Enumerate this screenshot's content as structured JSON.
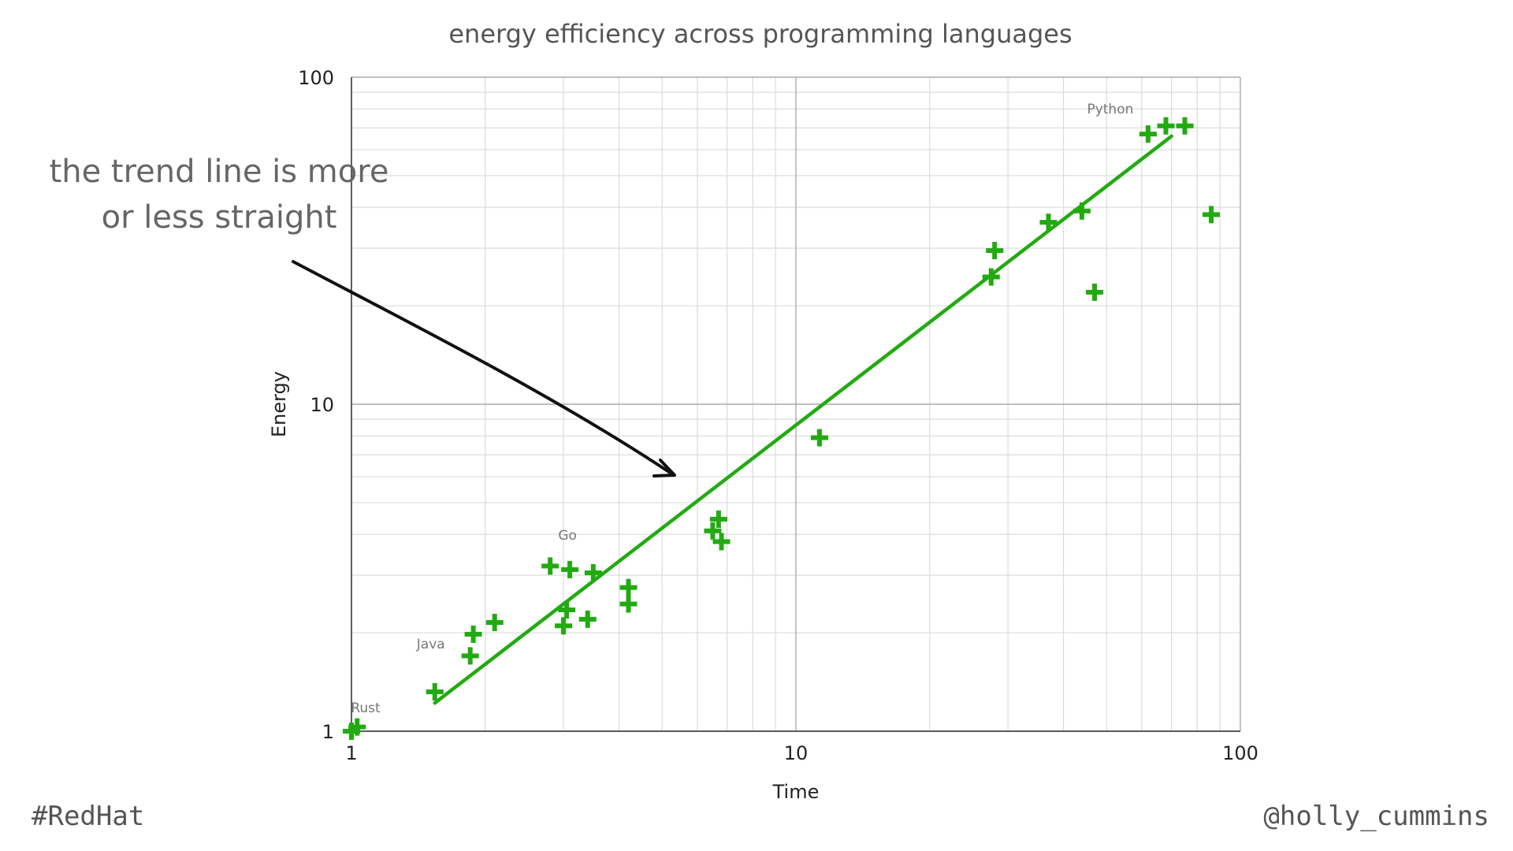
{
  "chart_data": {
    "type": "scatter",
    "title": "energy efficiency across programming languages",
    "xlabel": "Time",
    "ylabel": "Energy",
    "x_scale": "log",
    "y_scale": "log",
    "xlim": [
      1,
      100
    ],
    "ylim": [
      1,
      100
    ],
    "x_ticks": [
      {
        "value": 1,
        "label": "1"
      },
      {
        "value": 10,
        "label": "10"
      },
      {
        "value": 100,
        "label": "100"
      }
    ],
    "y_ticks": [
      {
        "value": 1,
        "label": "1"
      },
      {
        "value": 10,
        "label": "10"
      },
      {
        "value": 100,
        "label": "100"
      }
    ],
    "grid": true,
    "marker": "plus",
    "marker_color": "#22aa11",
    "points": [
      {
        "x": 1.0,
        "y": 1.0
      },
      {
        "x": 1.03,
        "y": 1.03
      },
      {
        "x": 1.54,
        "y": 1.32
      },
      {
        "x": 1.85,
        "y": 1.7
      },
      {
        "x": 1.88,
        "y": 1.98
      },
      {
        "x": 2.1,
        "y": 2.15
      },
      {
        "x": 2.8,
        "y": 3.2
      },
      {
        "x": 3.1,
        "y": 3.12
      },
      {
        "x": 3.5,
        "y": 3.05
      },
      {
        "x": 3.0,
        "y": 2.1
      },
      {
        "x": 3.05,
        "y": 2.35
      },
      {
        "x": 3.4,
        "y": 2.2
      },
      {
        "x": 4.2,
        "y": 2.75
      },
      {
        "x": 4.2,
        "y": 2.45
      },
      {
        "x": 6.5,
        "y": 4.1
      },
      {
        "x": 6.7,
        "y": 4.45
      },
      {
        "x": 6.8,
        "y": 3.8
      },
      {
        "x": 11.3,
        "y": 7.9
      },
      {
        "x": 27.5,
        "y": 24.5
      },
      {
        "x": 28.0,
        "y": 29.5
      },
      {
        "x": 37.0,
        "y": 36.0
      },
      {
        "x": 44.0,
        "y": 39.0
      },
      {
        "x": 47.0,
        "y": 22.0
      },
      {
        "x": 62.0,
        "y": 67.0
      },
      {
        "x": 68.0,
        "y": 71.0
      },
      {
        "x": 75.0,
        "y": 71.0
      },
      {
        "x": 86.0,
        "y": 38.0
      }
    ],
    "trend_line": {
      "color": "#22aa11",
      "from": {
        "x": 1.54,
        "y": 1.22
      },
      "to": {
        "x": 70.0,
        "y": 66.0
      }
    },
    "point_labels": [
      {
        "text": "Rust",
        "x": 1.0,
        "y": 1.0
      },
      {
        "text": "Java",
        "x": 1.54,
        "y": 1.32
      },
      {
        "text": "Go",
        "x": 3.1,
        "y": 3.12
      },
      {
        "text": "Python",
        "x": 62.0,
        "y": 67.0
      }
    ]
  },
  "annotation": {
    "lines": [
      "the trend line is more",
      "or less straight"
    ]
  },
  "footer": {
    "left": "#RedHat",
    "right": "@holly_cummins"
  }
}
